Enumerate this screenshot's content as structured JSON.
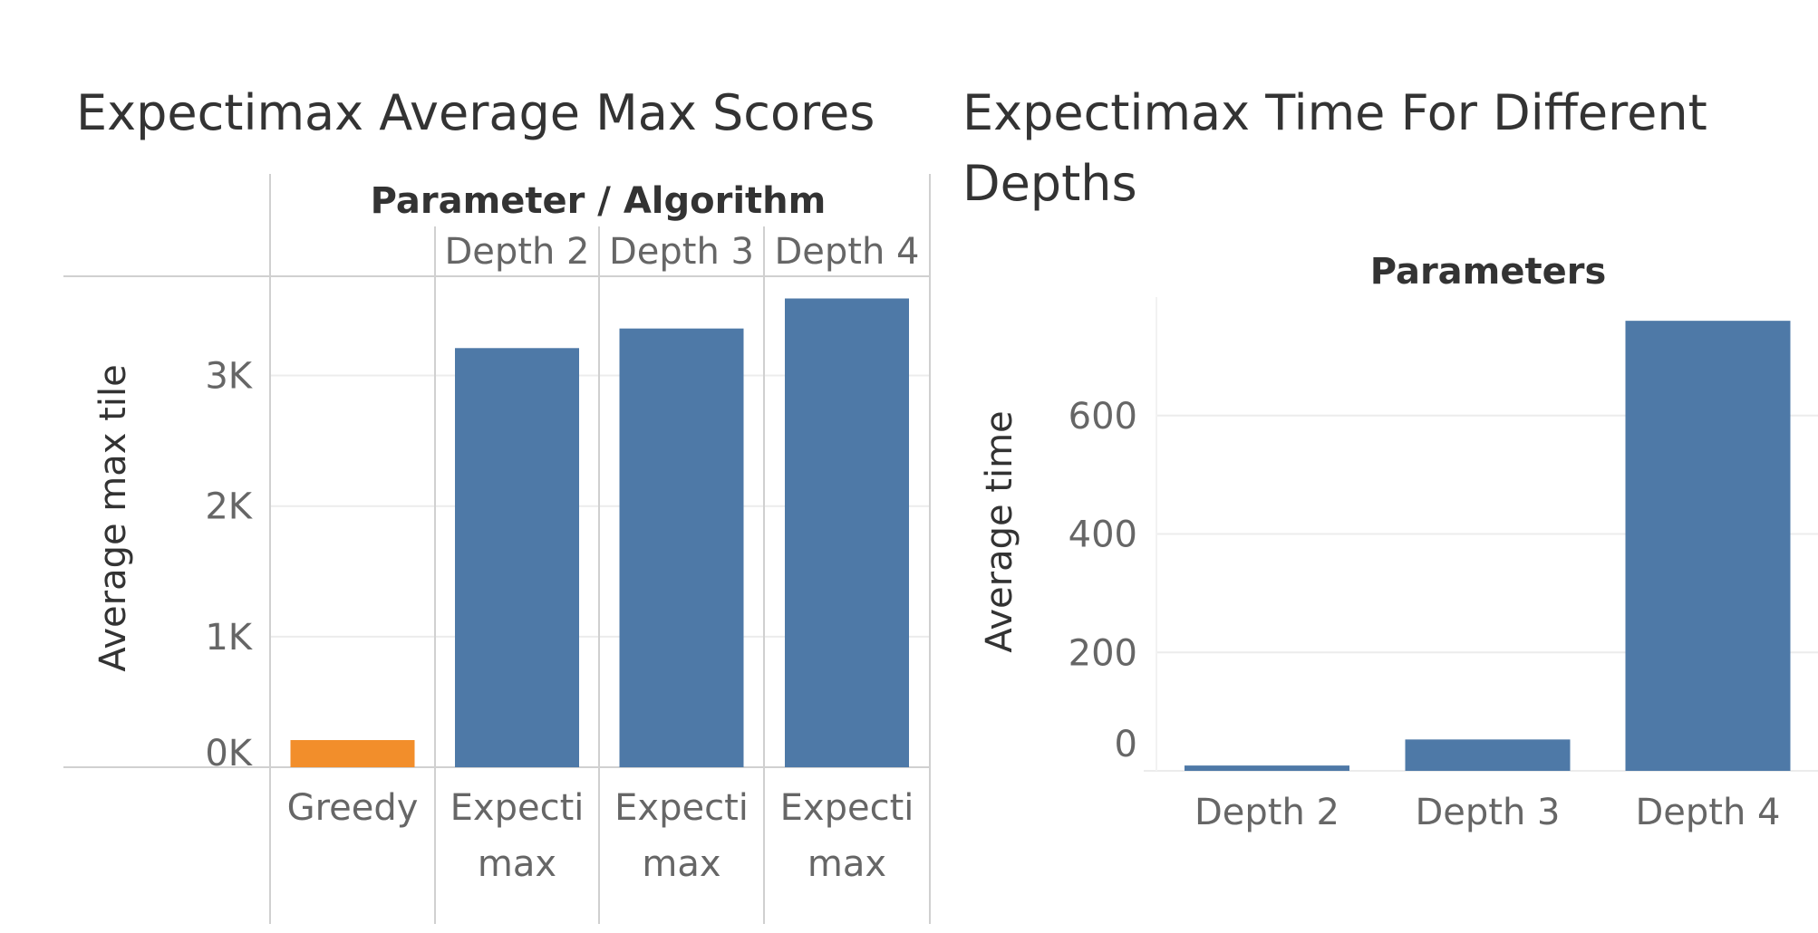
{
  "chart_data": [
    {
      "type": "bar",
      "title": "Expectimax Average Max Scores",
      "column_header_title": "Parameter / Algorithm",
      "column_headers": [
        "",
        "Depth 2",
        "Depth 3",
        "Depth 4"
      ],
      "categories": [
        "Greedy",
        "Expectimax",
        "Expectimax",
        "Expectimax"
      ],
      "category_lines": [
        [
          "Greedy"
        ],
        [
          "Expecti",
          "max"
        ],
        [
          "Expecti",
          "max"
        ],
        [
          "Expecti",
          "max"
        ]
      ],
      "values": [
        208,
        3210,
        3360,
        3590
      ],
      "colors": [
        "#f28e2b",
        "#4e79a7",
        "#4e79a7",
        "#4e79a7"
      ],
      "ylabel": "Average max tile",
      "ylim": [
        0,
        3760
      ],
      "yticks": [
        0,
        1000,
        2000,
        3000
      ],
      "ytick_labels": [
        "0K",
        "1K",
        "2K",
        "3K"
      ],
      "grid": true
    },
    {
      "type": "bar",
      "title": "Expectimax Time For Different Depths",
      "title_lines": [
        "Expectimax Time For Different",
        "Depths"
      ],
      "header": "Parameters",
      "categories": [
        "Depth 2",
        "Depth 3",
        "Depth 4"
      ],
      "values": [
        9,
        53,
        760
      ],
      "color": "#4e79a7",
      "ylabel": "Average time",
      "ylim": [
        0,
        800
      ],
      "yticks": [
        0,
        200,
        400,
        600
      ],
      "ytick_labels": [
        "0",
        "200",
        "400",
        "600"
      ],
      "grid": true
    }
  ]
}
